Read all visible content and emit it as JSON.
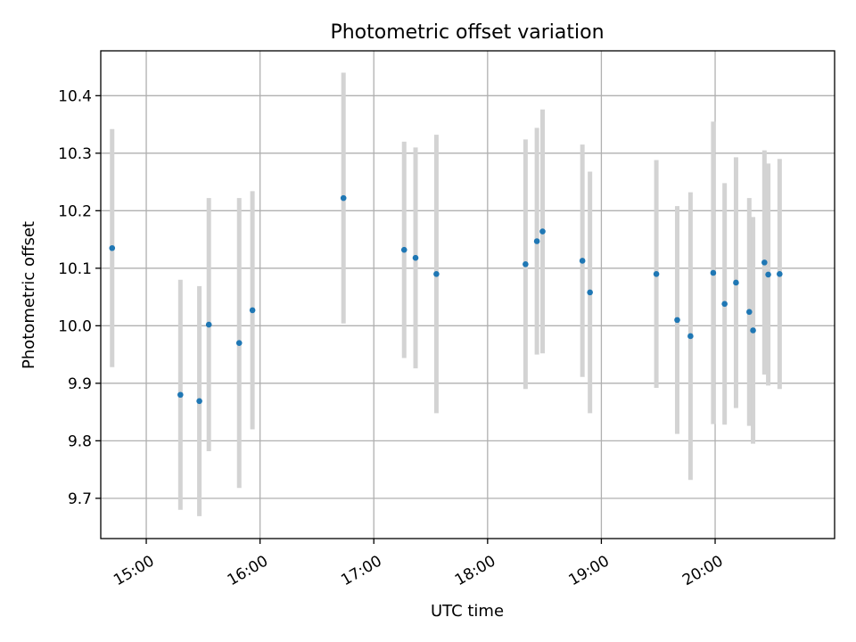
{
  "chart_data": {
    "type": "scatter",
    "title": "Photometric offset variation",
    "xlabel": "UTC time",
    "ylabel": "Photometric offset",
    "x_unit": "UTC time (HH:MM)",
    "xlim": [
      "14:36",
      "21:03"
    ],
    "ylim": [
      9.63,
      10.478
    ],
    "x_ticks": [
      "15:00",
      "16:00",
      "17:00",
      "18:00",
      "19:00",
      "20:00"
    ],
    "y_ticks": [
      9.7,
      9.8,
      9.9,
      10.0,
      10.1,
      10.2,
      10.3,
      10.4
    ],
    "grid": true,
    "point_color": "#1f77b4",
    "errorbar_color": "#d3d3d3",
    "points": [
      {
        "x": "14:42",
        "y": 10.135,
        "err": 0.207
      },
      {
        "x": "15:18",
        "y": 9.88,
        "err": 0.2
      },
      {
        "x": "15:28",
        "y": 9.869,
        "err": 0.2
      },
      {
        "x": "15:33",
        "y": 10.002,
        "err": 0.22
      },
      {
        "x": "15:49",
        "y": 9.97,
        "err": 0.252
      },
      {
        "x": "15:56",
        "y": 10.027,
        "err": 0.207
      },
      {
        "x": "16:44",
        "y": 10.222,
        "err": 0.218
      },
      {
        "x": "17:16",
        "y": 10.132,
        "err": 0.188
      },
      {
        "x": "17:22",
        "y": 10.118,
        "err": 0.192
      },
      {
        "x": "17:33",
        "y": 10.09,
        "err": 0.242
      },
      {
        "x": "18:20",
        "y": 10.107,
        "err": 0.217
      },
      {
        "x": "18:26",
        "y": 10.147,
        "err": 0.197
      },
      {
        "x": "18:29",
        "y": 10.164,
        "err": 0.212
      },
      {
        "x": "18:50",
        "y": 10.113,
        "err": 0.202
      },
      {
        "x": "18:54",
        "y": 10.058,
        "err": 0.21
      },
      {
        "x": "19:29",
        "y": 10.09,
        "err": 0.198
      },
      {
        "x": "19:40",
        "y": 10.01,
        "err": 0.198
      },
      {
        "x": "19:47",
        "y": 9.982,
        "err": 0.25
      },
      {
        "x": "19:59",
        "y": 10.092,
        "err": 0.263
      },
      {
        "x": "20:05",
        "y": 10.038,
        "err": 0.21
      },
      {
        "x": "20:11",
        "y": 10.075,
        "err": 0.218
      },
      {
        "x": "20:18",
        "y": 10.024,
        "err": 0.198
      },
      {
        "x": "20:20",
        "y": 9.992,
        "err": 0.197
      },
      {
        "x": "20:26",
        "y": 10.11,
        "err": 0.195
      },
      {
        "x": "20:28",
        "y": 10.089,
        "err": 0.193
      },
      {
        "x": "20:34",
        "y": 10.09,
        "err": 0.2
      }
    ]
  }
}
